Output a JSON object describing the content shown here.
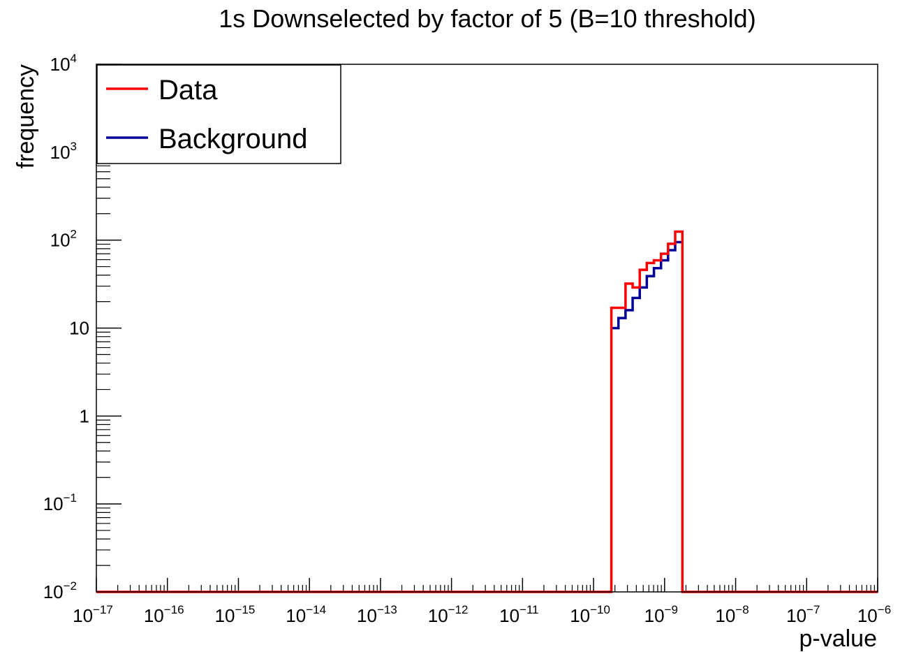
{
  "chart_data": {
    "type": "step-histogram",
    "title": "1s Downselected by factor of 5 (B=10 threshold)",
    "xlabel": "p-value",
    "ylabel": "frequency",
    "x_scale": "log",
    "y_scale": "log",
    "xlim": [
      1e-17,
      1e-06
    ],
    "ylim": [
      0.01,
      10000
    ],
    "x_ticks": [
      {
        "base": "10",
        "exp": "−17"
      },
      {
        "base": "10",
        "exp": "−16"
      },
      {
        "base": "10",
        "exp": "−15"
      },
      {
        "base": "10",
        "exp": "−14"
      },
      {
        "base": "10",
        "exp": "−13"
      },
      {
        "base": "10",
        "exp": "−12"
      },
      {
        "base": "10",
        "exp": "−11"
      },
      {
        "base": "10",
        "exp": "−10"
      },
      {
        "base": "10",
        "exp": "−9"
      },
      {
        "base": "10",
        "exp": "−8"
      },
      {
        "base": "10",
        "exp": "−7"
      },
      {
        "base": "10",
        "exp": "−6"
      }
    ],
    "y_ticks": [
      {
        "value": 0.01,
        "base": "10",
        "exp": "−2"
      },
      {
        "value": 0.1,
        "base": "10",
        "exp": "−1"
      },
      {
        "value": 1,
        "base": "1",
        "exp": ""
      },
      {
        "value": 10,
        "base": "10",
        "exp": ""
      },
      {
        "value": 100,
        "base": "10",
        "exp": "2"
      },
      {
        "value": 1000,
        "base": "10",
        "exp": "3"
      },
      {
        "value": 10000,
        "base": "10",
        "exp": "4"
      }
    ],
    "legend_position": "top-left",
    "series": [
      {
        "name": "Data",
        "color": "#ff0000",
        "bins": [
          {
            "x0": 1.78e-10,
            "x1": 2.24e-10,
            "y": 17
          },
          {
            "x0": 2.24e-10,
            "x1": 2.82e-10,
            "y": 17
          },
          {
            "x0": 2.82e-10,
            "x1": 3.55e-10,
            "y": 32
          },
          {
            "x0": 3.55e-10,
            "x1": 4.47e-10,
            "y": 29
          },
          {
            "x0": 4.47e-10,
            "x1": 5.62e-10,
            "y": 46
          },
          {
            "x0": 5.62e-10,
            "x1": 7.08e-10,
            "y": 55
          },
          {
            "x0": 7.08e-10,
            "x1": 8.91e-10,
            "y": 59
          },
          {
            "x0": 8.91e-10,
            "x1": 1.12e-09,
            "y": 70
          },
          {
            "x0": 1.12e-09,
            "x1": 1.41e-09,
            "y": 91
          },
          {
            "x0": 1.41e-09,
            "x1": 1.78e-09,
            "y": 125
          }
        ]
      },
      {
        "name": "Background",
        "color": "#000099",
        "bins": [
          {
            "x0": 1.78e-10,
            "x1": 2.24e-10,
            "y": 10
          },
          {
            "x0": 2.24e-10,
            "x1": 2.82e-10,
            "y": 13
          },
          {
            "x0": 2.82e-10,
            "x1": 3.55e-10,
            "y": 16
          },
          {
            "x0": 3.55e-10,
            "x1": 4.47e-10,
            "y": 22
          },
          {
            "x0": 4.47e-10,
            "x1": 5.62e-10,
            "y": 29
          },
          {
            "x0": 5.62e-10,
            "x1": 7.08e-10,
            "y": 39
          },
          {
            "x0": 7.08e-10,
            "x1": 8.91e-10,
            "y": 48
          },
          {
            "x0": 8.91e-10,
            "x1": 1.12e-09,
            "y": 59
          },
          {
            "x0": 1.12e-09,
            "x1": 1.41e-09,
            "y": 77
          },
          {
            "x0": 1.41e-09,
            "x1": 1.78e-09,
            "y": 95
          }
        ]
      }
    ]
  }
}
